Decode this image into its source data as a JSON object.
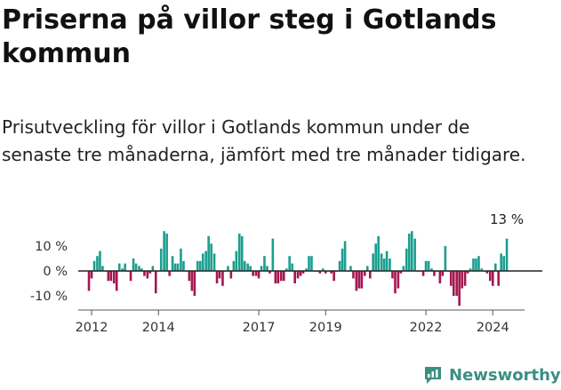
{
  "header": {
    "title": "Priserna på villor steg i Gotlands kommun",
    "subtitle": "Prisutveckling för villor i Gotlands kommun under de senaste tre månaderna, jämfört med tre månader tidigare."
  },
  "brand": {
    "name": "Newsworthy",
    "icon": "newsworthy-logo-icon"
  },
  "colors": {
    "positive": "#1a9e8f",
    "negative": "#a3174f",
    "zero_line": "#222222",
    "axis": "#555555"
  },
  "chart_data": {
    "type": "bar",
    "xlabel": "",
    "ylabel": "",
    "ylim": [
      -15,
      16
    ],
    "y_ticks": [
      {
        "value": 10,
        "label": "10 %"
      },
      {
        "value": 0,
        "label": "0 %"
      },
      {
        "value": -10,
        "label": "-10 %"
      }
    ],
    "x_ticks": [
      "2012",
      "2014",
      "2017",
      "2019",
      "2022",
      "2024"
    ],
    "x_tick_positions": [
      2012.0,
      2014.0,
      2017.0,
      2019.0,
      2022.0,
      2024.0
    ],
    "grid": false,
    "legend": "none",
    "last_value_label": "13 %",
    "x": [
      2011.92,
      2012.0,
      2012.08,
      2012.17,
      2012.25,
      2012.33,
      2012.42,
      2012.5,
      2012.58,
      2012.67,
      2012.75,
      2012.83,
      2012.92,
      2013.0,
      2013.08,
      2013.17,
      2013.25,
      2013.33,
      2013.42,
      2013.5,
      2013.58,
      2013.67,
      2013.75,
      2013.83,
      2013.92,
      2014.0,
      2014.08,
      2014.17,
      2014.25,
      2014.33,
      2014.42,
      2014.5,
      2014.58,
      2014.67,
      2014.75,
      2014.83,
      2014.92,
      2015.0,
      2015.08,
      2015.17,
      2015.25,
      2015.33,
      2015.42,
      2015.5,
      2015.58,
      2015.67,
      2015.75,
      2015.83,
      2015.92,
      2016.0,
      2016.08,
      2016.17,
      2016.25,
      2016.33,
      2016.42,
      2016.5,
      2016.58,
      2016.67,
      2016.75,
      2016.83,
      2016.92,
      2017.0,
      2017.08,
      2017.17,
      2017.25,
      2017.33,
      2017.42,
      2017.5,
      2017.58,
      2017.67,
      2017.75,
      2017.83,
      2017.92,
      2018.0,
      2018.08,
      2018.17,
      2018.25,
      2018.33,
      2018.42,
      2018.5,
      2018.58,
      2018.67,
      2018.75,
      2018.83,
      2018.92,
      2019.0,
      2019.08,
      2019.17,
      2019.25,
      2019.33,
      2019.42,
      2019.5,
      2019.58,
      2019.67,
      2019.75,
      2019.83,
      2019.92,
      2020.0,
      2020.08,
      2020.17,
      2020.25,
      2020.33,
      2020.42,
      2020.5,
      2020.58,
      2020.67,
      2020.75,
      2020.83,
      2020.92,
      2021.0,
      2021.08,
      2021.17,
      2021.25,
      2021.33,
      2021.42,
      2021.5,
      2021.58,
      2021.67,
      2021.75,
      2021.83,
      2021.92,
      2022.0,
      2022.08,
      2022.17,
      2022.25,
      2022.33,
      2022.42,
      2022.5,
      2022.58,
      2022.67,
      2022.75,
      2022.83,
      2022.92,
      2023.0,
      2023.08,
      2023.17,
      2023.25,
      2023.33,
      2023.42,
      2023.5,
      2023.58,
      2023.67,
      2023.75,
      2023.83,
      2023.92,
      2024.0,
      2024.08,
      2024.17,
      2024.25,
      2024.33,
      2024.42
    ],
    "values": [
      -8,
      -3,
      4,
      6,
      8,
      2,
      0,
      -4,
      -4,
      -5,
      -8,
      3,
      1,
      3,
      0,
      -4,
      5,
      3,
      2,
      1,
      -2,
      -3,
      -1,
      2,
      -9,
      0,
      9,
      16,
      15,
      -2,
      6,
      3,
      3,
      9,
      4,
      0,
      -4,
      -8,
      -10,
      4,
      4,
      7,
      8,
      14,
      11,
      7,
      -5,
      -3,
      -6,
      0,
      2,
      -3,
      4,
      8,
      15,
      14,
      4,
      3,
      2,
      -2,
      -2,
      -3,
      2,
      6,
      2,
      -1,
      13,
      -5,
      -5,
      -4,
      -4,
      1,
      6,
      3,
      -5,
      -3,
      -2,
      -1,
      1,
      6,
      6,
      0,
      0,
      -1,
      1,
      -1,
      0,
      -1,
      -4,
      0,
      4,
      9,
      12,
      0,
      2,
      -3,
      -8,
      -7,
      -7,
      -2,
      2,
      -3,
      7,
      11,
      14,
      7,
      5,
      8,
      5,
      -3,
      -9,
      -7,
      -1,
      2,
      9,
      15,
      16,
      13,
      0,
      0,
      -2,
      4,
      4,
      1,
      -2,
      0,
      -5,
      -2,
      10,
      0,
      -6,
      -10,
      -10,
      -14,
      -7,
      -6,
      -1,
      1,
      5,
      5,
      6,
      1,
      0,
      -1,
      -4,
      -6,
      3,
      -6,
      7,
      6,
      13
    ]
  }
}
